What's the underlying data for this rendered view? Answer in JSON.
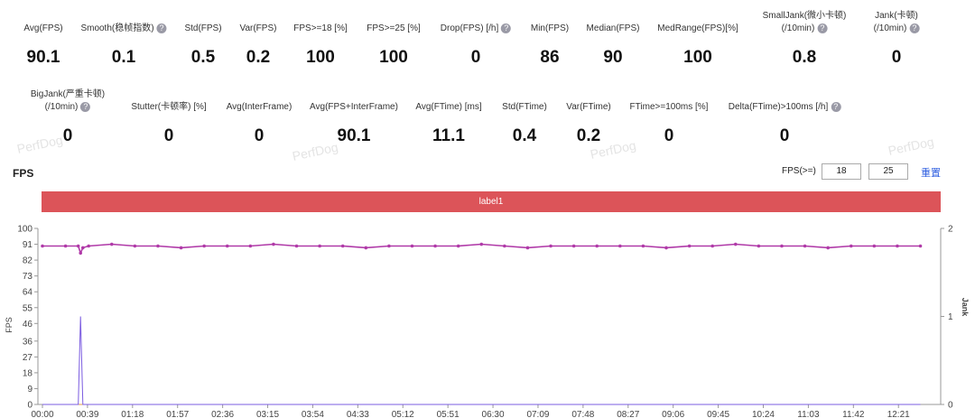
{
  "stats": {
    "row1": [
      {
        "label": [
          "Avg(FPS)"
        ],
        "value": 90.1,
        "help": false
      },
      {
        "label": [
          "Smooth(稳帧指数)"
        ],
        "value": 0.1,
        "help": true
      },
      {
        "label": [
          "Std(FPS)"
        ],
        "value": 0.5,
        "help": false
      },
      {
        "label": [
          "Var(FPS)"
        ],
        "value": 0.2,
        "help": false
      },
      {
        "label": [
          "FPS>=18 [%]"
        ],
        "value": 100,
        "help": false
      },
      {
        "label": [
          "FPS>=25 [%]"
        ],
        "value": 100,
        "help": false
      },
      {
        "label": [
          "Drop(FPS) [/h]"
        ],
        "value": 0,
        "help": true
      },
      {
        "label": [
          "Min(FPS)"
        ],
        "value": 86,
        "help": false
      },
      {
        "label": [
          "Median(FPS)"
        ],
        "value": 90,
        "help": false
      },
      {
        "label": [
          "MedRange(FPS)[%]"
        ],
        "value": 100,
        "help": false
      },
      {
        "label": [
          "SmallJank(微小卡顿)",
          "(/10min)"
        ],
        "value": 0.8,
        "help": true
      },
      {
        "label": [
          "Jank(卡顿)",
          "(/10min)"
        ],
        "value": 0,
        "help": true
      }
    ],
    "row2": [
      {
        "label": [
          "BigJank(严重卡顿)",
          "(/10min)"
        ],
        "value": 0,
        "help": true
      },
      {
        "label": [
          "Stutter(卡顿率) [%]"
        ],
        "value": 0,
        "help": false
      },
      {
        "label": [
          "Avg(InterFrame)"
        ],
        "value": 0,
        "help": false
      },
      {
        "label": [
          "Avg(FPS+InterFrame)"
        ],
        "value": 90.1,
        "help": false
      },
      {
        "label": [
          "Avg(FTime) [ms]"
        ],
        "value": 11.1,
        "help": false
      },
      {
        "label": [
          "Std(FTime)"
        ],
        "value": 0.4,
        "help": false
      },
      {
        "label": [
          "Var(FTime)"
        ],
        "value": 0.2,
        "help": false
      },
      {
        "label": [
          "FTime>=100ms [%]"
        ],
        "value": 0,
        "help": false
      },
      {
        "label": [
          "Delta(FTime)>100ms [/h]"
        ],
        "value": 0,
        "help": true
      }
    ]
  },
  "header": {
    "title": "FPS",
    "threshold_label": "FPS(>=)",
    "threshold_low": 18,
    "threshold_high": 25,
    "reset": "重置",
    "band_label": "label1",
    "watermark": "PerfDog"
  },
  "chart_data": {
    "type": "line",
    "x": [
      0,
      20,
      31,
      33,
      35,
      40,
      60,
      80,
      100,
      120,
      140,
      160,
      180,
      200,
      220,
      240,
      260,
      280,
      300,
      320,
      340,
      360,
      380,
      400,
      420,
      440,
      460,
      480,
      500,
      520,
      540,
      560,
      580,
      600,
      620,
      640,
      660,
      680,
      700,
      720,
      740,
      760
    ],
    "series": [
      {
        "color": "#b03aa8",
        "values": [
          90,
          90,
          90,
          86,
          89,
          90,
          91,
          90,
          90,
          89,
          90,
          90,
          90,
          91,
          90,
          90,
          90,
          89,
          90,
          90,
          90,
          90,
          91,
          90,
          89,
          90,
          90,
          90,
          90,
          90,
          89,
          90,
          90,
          91,
          90,
          90,
          90,
          89,
          90,
          90,
          90,
          90
        ]
      },
      {
        "color": "#7b5ce0",
        "axis": "y2",
        "values": [
          0,
          0,
          0,
          1,
          0,
          0,
          0,
          0,
          0,
          0,
          0,
          0,
          0,
          0,
          0,
          0,
          0,
          0,
          0,
          0,
          0,
          0,
          0,
          0,
          0,
          0,
          0,
          0,
          0,
          0,
          0,
          0,
          0,
          0,
          0,
          0,
          0,
          0,
          0,
          0,
          0,
          0
        ]
      },
      {
        "color": "#e5a04a",
        "axis": "y2",
        "values": [
          0,
          0,
          0,
          0,
          0,
          0,
          0,
          0,
          0,
          0,
          0,
          0,
          0,
          0,
          0,
          0,
          0,
          0,
          0,
          0,
          0,
          0,
          0,
          0,
          0,
          0,
          0,
          0,
          0,
          0,
          0,
          0,
          0,
          0,
          0,
          0,
          0,
          0,
          0,
          0,
          0,
          0
        ]
      }
    ],
    "y_label": "FPS",
    "y2_label": "Jank",
    "xlim": [
      0,
      776
    ],
    "xticks": [
      {
        "value": 0,
        "label": "00:00"
      },
      {
        "value": 39,
        "label": "00:39"
      },
      {
        "value": 78,
        "label": "01:18"
      },
      {
        "value": 117,
        "label": "01:57"
      },
      {
        "value": 156,
        "label": "02:36"
      },
      {
        "value": 195,
        "label": "03:15"
      },
      {
        "value": 234,
        "label": "03:54"
      },
      {
        "value": 273,
        "label": "04:33"
      },
      {
        "value": 312,
        "label": "05:12"
      },
      {
        "value": 351,
        "label": "05:51"
      },
      {
        "value": 390,
        "label": "06:30"
      },
      {
        "value": 429,
        "label": "07:09"
      },
      {
        "value": 468,
        "label": "07:48"
      },
      {
        "value": 507,
        "label": "08:27"
      },
      {
        "value": 546,
        "label": "09:06"
      },
      {
        "value": 585,
        "label": "09:45"
      },
      {
        "value": 624,
        "label": "10:24"
      },
      {
        "value": 663,
        "label": "11:03"
      },
      {
        "value": 702,
        "label": "11:42"
      },
      {
        "value": 741,
        "label": "12:21"
      }
    ],
    "ylim": [
      0,
      100
    ],
    "yticks": [
      0,
      9,
      18,
      27,
      36,
      46,
      55,
      64,
      73,
      82,
      91,
      100
    ],
    "y2lim": [
      0,
      2
    ],
    "y2ticks": [
      0,
      1,
      2
    ]
  }
}
